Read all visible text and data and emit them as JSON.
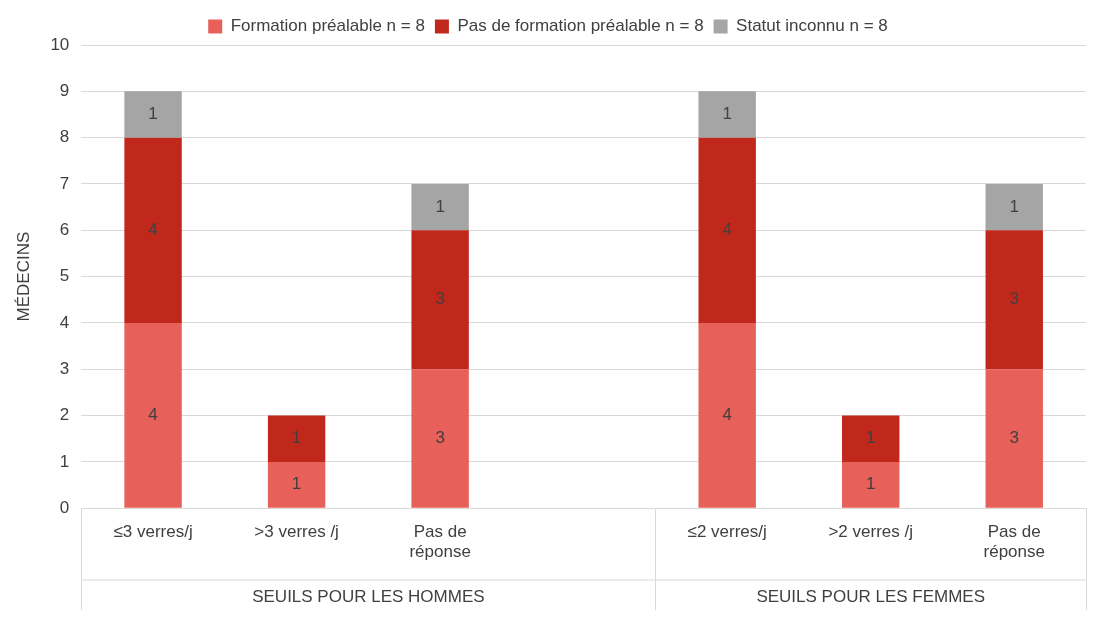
{
  "chart_data": {
    "type": "bar",
    "stacked": true,
    "ylabel": "MÉDECINS",
    "categories": [
      "≤3 verres/j",
      ">3 verres /j",
      "Pas de réponse",
      null,
      "≤2 verres/j",
      ">2 verres /j",
      "Pas de réponse"
    ],
    "series": [
      {
        "name": "Formation préalable n = 8",
        "color": "#e8605a",
        "values": [
          4,
          1,
          3,
          null,
          4,
          1,
          3
        ]
      },
      {
        "name": "Pas de formation préalable n = 8",
        "color": "#c0281c",
        "values": [
          4,
          1,
          3,
          null,
          4,
          1,
          3
        ]
      },
      {
        "name": "Statut inconnu n = 8",
        "color": "#a5a5a5",
        "values": [
          1,
          null,
          1,
          null,
          1,
          null,
          1
        ]
      }
    ],
    "ylim": [
      0,
      10
    ],
    "yticks": [
      0,
      1,
      2,
      3,
      4,
      5,
      6,
      7,
      8,
      9,
      10
    ],
    "grid": "y",
    "legend": "top",
    "data_labels": true,
    "annotations": [
      "SEUILS POUR LES HOMMES",
      "SEUILS POUR LES FEMMES"
    ]
  }
}
